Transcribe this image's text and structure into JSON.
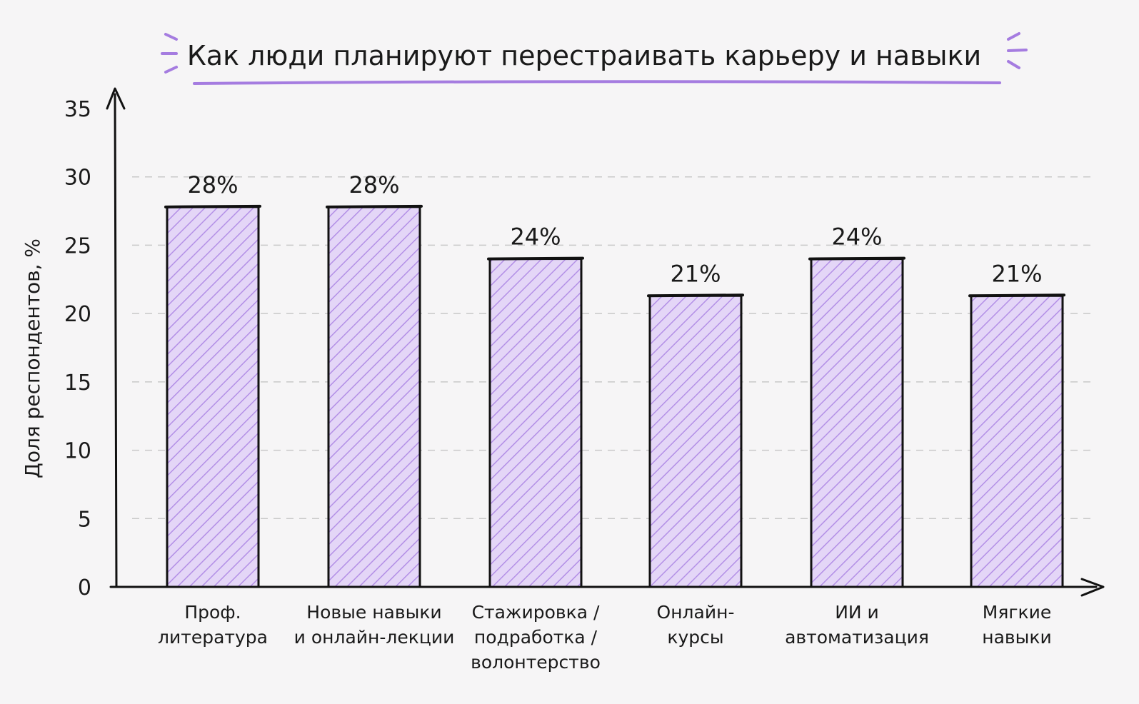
{
  "chart_data": {
    "type": "bar",
    "title": "Как люди планируют перестраивать карьеру и навыки",
    "ylabel": "Доля респондентов, %",
    "xlabel": "",
    "ylim": [
      0,
      35
    ],
    "yticks": [
      0,
      5,
      10,
      15,
      20,
      25,
      30,
      35
    ],
    "grid": true,
    "categories": [
      [
        "Проф.",
        "литература"
      ],
      [
        "Новые навыки",
        "и онлайн-лекции"
      ],
      [
        "Стажировка /",
        "подработка /",
        "волонтерство"
      ],
      [
        "Онлайн-",
        "курсы"
      ],
      [
        "ИИ и",
        "автоматизация"
      ],
      [
        "Мягкие",
        "навыки"
      ]
    ],
    "values": [
      27.8,
      27.8,
      24,
      21.3,
      24,
      21.3
    ],
    "data_labels": [
      "28%",
      "28%",
      "24%",
      "21%",
      "24%",
      "21%"
    ],
    "colors": {
      "bar_fill": "#e4d6f7",
      "bar_hatch": "#b38fe6",
      "bar_stroke": "#111111",
      "accent": "#a57ce0",
      "grid": "#c9c9c9",
      "axis": "#111111"
    }
  }
}
